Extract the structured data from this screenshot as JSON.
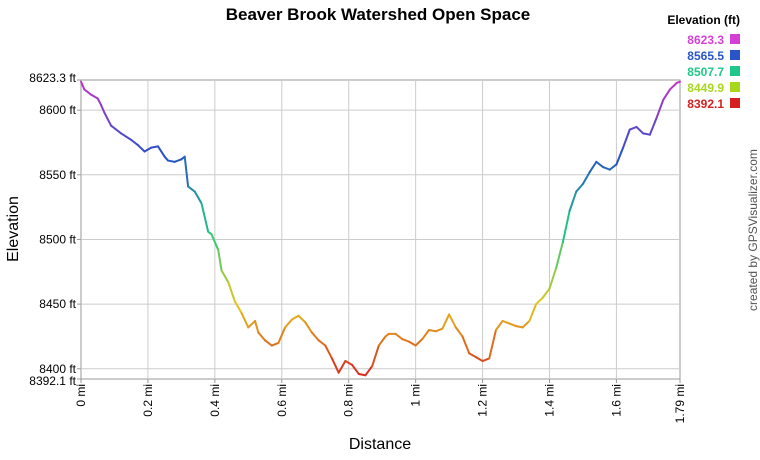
{
  "chart_data": {
    "type": "line",
    "title": "Beaver Brook Watershed Open Space",
    "xlabel": "Distance",
    "ylabel": "Elevation",
    "credit": "created by GPSVisualizer.com",
    "xlim": [
      0,
      1.79
    ],
    "ylim": [
      8392.1,
      8623.3
    ],
    "x_ticks": [
      {
        "value": 0,
        "label": "0 mi"
      },
      {
        "value": 0.2,
        "label": "0.2 mi"
      },
      {
        "value": 0.4,
        "label": "0.4 mi"
      },
      {
        "value": 0.6,
        "label": "0.6 mi"
      },
      {
        "value": 0.8,
        "label": "0.8 mi"
      },
      {
        "value": 1.0,
        "label": "1 mi"
      },
      {
        "value": 1.2,
        "label": "1.2 mi"
      },
      {
        "value": 1.4,
        "label": "1.4 mi"
      },
      {
        "value": 1.6,
        "label": "1.6 mi"
      },
      {
        "value": 1.79,
        "label": "1.79 mi"
      }
    ],
    "y_ticks": [
      {
        "value": 8623.3,
        "label": "8623.3 ft"
      },
      {
        "value": 8600,
        "label": "8600 ft"
      },
      {
        "value": 8550,
        "label": "8550 ft"
      },
      {
        "value": 8500,
        "label": "8500 ft"
      },
      {
        "value": 8450,
        "label": "8450 ft"
      },
      {
        "value": 8400,
        "label": "8400 ft"
      },
      {
        "value": 8392.1,
        "label": "8392.1 ft"
      }
    ],
    "grid": true,
    "legend": {
      "title": "Elevation (ft)",
      "placement": "top-right",
      "entries": [
        {
          "label": "8623.3",
          "color": "#d63fd6"
        },
        {
          "label": "8565.5",
          "color": "#2a55c8"
        },
        {
          "label": "8507.7",
          "color": "#1ec88a"
        },
        {
          "label": "8449.9",
          "color": "#a8d81e"
        },
        {
          "label": "8392.1",
          "color": "#d62020"
        }
      ]
    },
    "series": [
      {
        "x": [
          0,
          0.01,
          0.03,
          0.05,
          0.06,
          0.07,
          0.09,
          0.12,
          0.15,
          0.17,
          0.19,
          0.21,
          0.23,
          0.25,
          0.26,
          0.28,
          0.3,
          0.31,
          0.32,
          0.34,
          0.36,
          0.38,
          0.39,
          0.41,
          0.42,
          0.44,
          0.46,
          0.48,
          0.5,
          0.52,
          0.53,
          0.55,
          0.57,
          0.59,
          0.61,
          0.63,
          0.65,
          0.67,
          0.69,
          0.71,
          0.73,
          0.75,
          0.77,
          0.79,
          0.81,
          0.83,
          0.85,
          0.87,
          0.89,
          0.91,
          0.92,
          0.94,
          0.96,
          0.98,
          1.0,
          1.02,
          1.04,
          1.06,
          1.08,
          1.1,
          1.12,
          1.14,
          1.16,
          1.18,
          1.2,
          1.22,
          1.24,
          1.26,
          1.28,
          1.3,
          1.32,
          1.34,
          1.36,
          1.38,
          1.4,
          1.42,
          1.44,
          1.46,
          1.48,
          1.5,
          1.52,
          1.54,
          1.56,
          1.58,
          1.6,
          1.62,
          1.64,
          1.66,
          1.68,
          1.7,
          1.72,
          1.74,
          1.76,
          1.78,
          1.79
        ],
        "y": [
          8622,
          8616,
          8612,
          8609,
          8604,
          8598,
          8588,
          8582,
          8577,
          8573,
          8568,
          8571,
          8572,
          8564,
          8561,
          8560,
          8562,
          8564,
          8541,
          8537,
          8528,
          8506,
          8504,
          8492,
          8476,
          8467,
          8452,
          8443,
          8432,
          8437,
          8428,
          8422,
          8418,
          8420,
          8432,
          8438,
          8441,
          8436,
          8428,
          8422,
          8418,
          8408,
          8397,
          8406,
          8403,
          8396,
          8395,
          8402,
          8418,
          8425,
          8427,
          8427,
          8423,
          8421,
          8418,
          8423,
          8430,
          8429,
          8431,
          8442,
          8432,
          8425,
          8412,
          8409,
          8406,
          8408,
          8430,
          8437,
          8435,
          8433,
          8432,
          8437,
          8450,
          8455,
          8462,
          8478,
          8498,
          8522,
          8537,
          8543,
          8552,
          8560,
          8556,
          8554,
          8558,
          8571,
          8585,
          8587,
          8582,
          8581,
          8594,
          8608,
          8616,
          8621,
          8622
        ]
      }
    ]
  }
}
